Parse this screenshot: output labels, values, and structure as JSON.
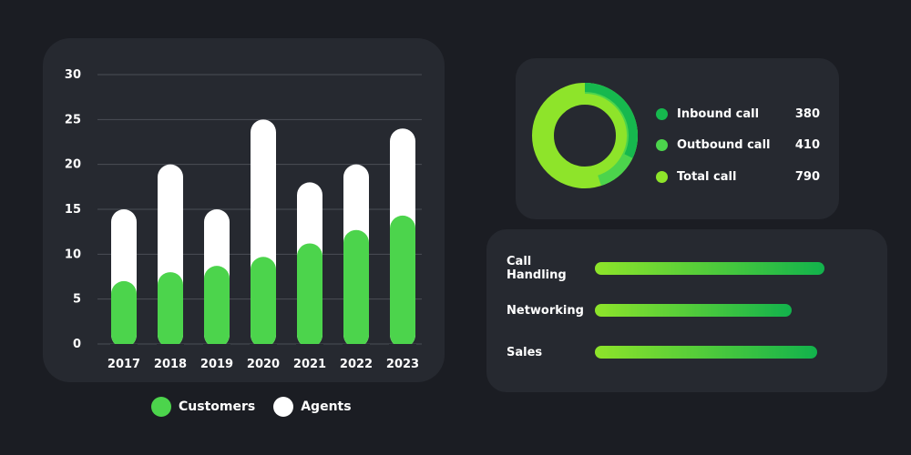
{
  "chart_data": {
    "type": "bar",
    "stacked": true,
    "categories": [
      "2017",
      "2018",
      "2019",
      "2020",
      "2021",
      "2022",
      "2023"
    ],
    "series": [
      {
        "name": "Customers",
        "values": [
          7,
          8,
          8.7,
          9.7,
          11.2,
          12.7,
          14.3
        ],
        "color": "#4cd44c"
      },
      {
        "name": "Agents",
        "values": [
          8,
          12,
          6.3,
          15.3,
          6.8,
          7.3,
          9.7
        ],
        "color": "#ffffff"
      }
    ],
    "yticks": [
      "0",
      "5",
      "10",
      "15",
      "20",
      "25",
      "30"
    ],
    "ylim": [
      0,
      30
    ],
    "grid": true,
    "legend_position": "bottom"
  },
  "legend": {
    "customers_label": "Customers",
    "agents_label": "Agents",
    "customers_color": "#4cd44c",
    "agents_color": "#ffffff"
  },
  "donut": {
    "type": "pie",
    "items": [
      {
        "label": "Inbound call",
        "value": "380",
        "color": "#16b84e"
      },
      {
        "label": "Outbound call",
        "value": "410",
        "color": "#4cd44c"
      },
      {
        "label": "Total call",
        "value": "790",
        "color": "#8ee42a"
      }
    ],
    "inbound_share": 0.481,
    "outbound_share": 0.519
  },
  "skills": [
    {
      "label": "Call Handling",
      "level": 0.97
    },
    {
      "label": "Networking",
      "level": 0.83
    },
    {
      "label": "Sales",
      "level": 0.94
    }
  ],
  "colors": {
    "background": "#1b1d23",
    "card": "#262930",
    "gradient_start": "#8ee42a",
    "gradient_end": "#12b24c"
  }
}
